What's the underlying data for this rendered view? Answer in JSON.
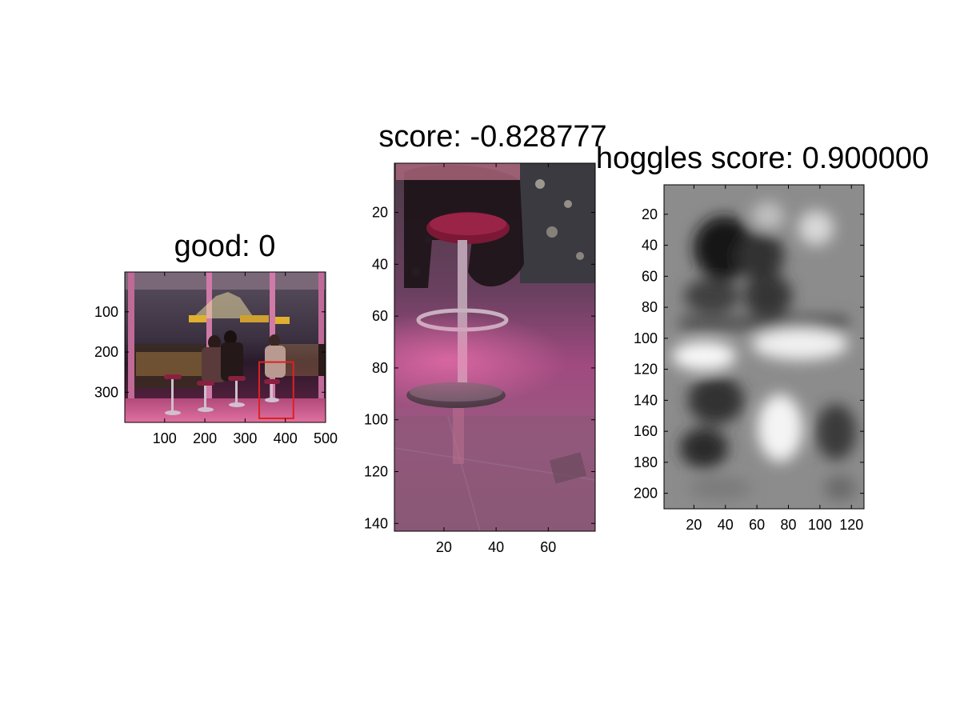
{
  "chart_data": [
    {
      "type": "image",
      "title": "good: 0",
      "xlim": [
        1,
        500
      ],
      "ylim": [
        1,
        375
      ],
      "xticks": [
        100,
        200,
        300,
        400,
        500
      ],
      "yticks": [
        100,
        200,
        300
      ],
      "detection_box": {
        "x": [
          335,
          420
        ],
        "y": [
          225,
          365
        ],
        "color": "#e02020"
      },
      "image": "night bar scene at window, pink lighting, city view"
    },
    {
      "type": "image",
      "title": "score: -0.828777",
      "xlim": [
        1,
        78
      ],
      "ylim": [
        1,
        143
      ],
      "xticks": [
        20,
        40,
        60
      ],
      "yticks": [
        20,
        40,
        60,
        80,
        100,
        120,
        140
      ],
      "image": "crop of bar stool, pink tones"
    },
    {
      "type": "heatmap",
      "title": "hoggles score: 0.900000",
      "xlim": [
        1,
        128
      ],
      "ylim": [
        1,
        210
      ],
      "xticks": [
        20,
        40,
        60,
        80,
        100,
        120
      ],
      "yticks": [
        20,
        40,
        60,
        80,
        100,
        120,
        140,
        160,
        180,
        200
      ],
      "colormap": "gray"
    }
  ]
}
